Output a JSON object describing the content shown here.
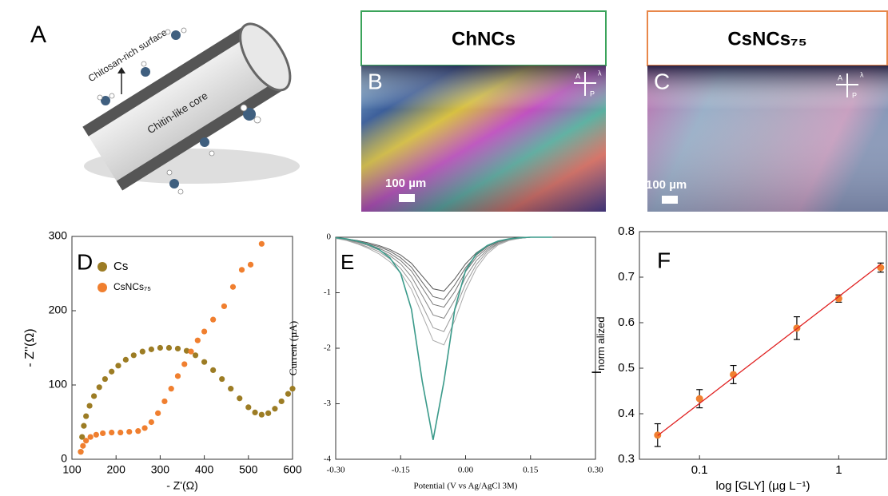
{
  "panels": {
    "A": {
      "letter": "A",
      "labels": [
        "Chitosan-rich surface",
        "Chitin-like core"
      ]
    },
    "B": {
      "letter": "B",
      "title": "ChNCs",
      "scale": "100 µm",
      "icon_labels": [
        "A",
        "P",
        "λ"
      ]
    },
    "C": {
      "letter": "C",
      "title": "CsNCs₇₅",
      "scale": "100 µm",
      "icon_labels": [
        "A",
        "P",
        "λ"
      ]
    }
  },
  "chart_data": [
    {
      "type": "scatter",
      "panel_label": "D",
      "xlabel": "- Z'(Ω)",
      "ylabel": "- Z''(Ω)",
      "xlim": [
        100,
        600
      ],
      "xticks": [
        100,
        200,
        300,
        400,
        500,
        600
      ],
      "ylim": [
        0,
        300
      ],
      "yticks": [
        0,
        100,
        200,
        300
      ],
      "legend": "upper left",
      "series": [
        {
          "name": "Cs",
          "color": "#9c7c24",
          "x": [
            120,
            123,
            127,
            132,
            140,
            150,
            162,
            175,
            190,
            205,
            222,
            240,
            260,
            280,
            300,
            320,
            340,
            360,
            380,
            400,
            420,
            440,
            460,
            480,
            500,
            515,
            530,
            545,
            560,
            575,
            590,
            600
          ],
          "values": [
            10,
            30,
            45,
            58,
            72,
            85,
            97,
            108,
            118,
            126,
            134,
            140,
            145,
            148,
            150,
            150,
            149,
            146,
            140,
            131,
            120,
            108,
            95,
            82,
            70,
            63,
            60,
            62,
            68,
            78,
            88,
            95
          ]
        },
        {
          "name": "CsNCs₇₅",
          "color": "#f07f2f",
          "x": [
            120,
            125,
            132,
            142,
            155,
            170,
            190,
            210,
            230,
            250,
            265,
            280,
            295,
            310,
            325,
            340,
            355,
            370,
            385,
            400,
            420,
            445,
            465,
            485,
            505,
            530
          ],
          "values": [
            10,
            18,
            25,
            30,
            33,
            35,
            36,
            36,
            37,
            38,
            42,
            50,
            62,
            78,
            95,
            112,
            128,
            145,
            160,
            172,
            188,
            206,
            232,
            255,
            262,
            290
          ]
        }
      ]
    },
    {
      "type": "line",
      "panel_label": "E",
      "xlabel": "Potential  (V vs Ag/AgCl 3M)",
      "ylabel": "Current  (µA)",
      "xlim": [
        -0.3,
        0.3
      ],
      "xticks": [
        {
          "value": -0.3,
          "label": "-0.30"
        },
        {
          "value": -0.15,
          "label": "-0.15"
        },
        {
          "value": 0,
          "label": "0.00"
        },
        {
          "value": 0.15,
          "label": "0.15"
        },
        {
          "value": 0.3,
          "label": "0.30"
        }
      ],
      "ylim": [
        -4,
        0
      ],
      "yticks": [
        0,
        -1,
        -2,
        -3,
        -4
      ],
      "x": [
        -0.3,
        -0.275,
        -0.25,
        -0.225,
        -0.2,
        -0.175,
        -0.15,
        -0.125,
        -0.1,
        -0.075,
        -0.05,
        -0.025,
        0,
        0.025,
        0.05,
        0.075,
        0.1,
        0.125,
        0.15,
        0.175,
        0.2
      ],
      "series": [
        {
          "color": "#555555",
          "values": [
            -0.01,
            -0.03,
            -0.06,
            -0.1,
            -0.15,
            -0.22,
            -0.32,
            -0.47,
            -0.7,
            -0.93,
            -0.97,
            -0.75,
            -0.48,
            -0.28,
            -0.15,
            -0.07,
            -0.03,
            -0.01,
            0,
            0,
            0
          ]
        },
        {
          "color": "#666666",
          "values": [
            -0.01,
            -0.03,
            -0.07,
            -0.12,
            -0.17,
            -0.25,
            -0.37,
            -0.54,
            -0.81,
            -1.07,
            -1.12,
            -0.86,
            -0.55,
            -0.32,
            -0.17,
            -0.08,
            -0.03,
            -0.01,
            0,
            0,
            0
          ]
        },
        {
          "color": "#777777",
          "values": [
            -0.01,
            -0.04,
            -0.08,
            -0.13,
            -0.2,
            -0.29,
            -0.42,
            -0.61,
            -0.91,
            -1.21,
            -1.26,
            -0.98,
            -0.62,
            -0.36,
            -0.2,
            -0.09,
            -0.04,
            -0.01,
            0,
            0,
            0
          ]
        },
        {
          "color": "#888888",
          "values": [
            -0.02,
            -0.05,
            -0.09,
            -0.15,
            -0.23,
            -0.33,
            -0.48,
            -0.71,
            -1.05,
            -1.4,
            -1.46,
            -1.13,
            -0.72,
            -0.42,
            -0.23,
            -0.11,
            -0.05,
            -0.02,
            0,
            0,
            0
          ]
        },
        {
          "color": "#999999",
          "values": [
            -0.02,
            -0.05,
            -0.11,
            -0.18,
            -0.26,
            -0.39,
            -0.56,
            -0.82,
            -1.23,
            -1.63,
            -1.7,
            -1.31,
            -0.84,
            -0.49,
            -0.26,
            -0.12,
            -0.05,
            -0.02,
            0,
            0,
            0
          ]
        },
        {
          "color": "#aaaaaa",
          "values": [
            -0.02,
            -0.06,
            -0.12,
            -0.2,
            -0.3,
            -0.44,
            -0.64,
            -0.94,
            -1.4,
            -1.86,
            -1.94,
            -1.5,
            -0.96,
            -0.56,
            -0.3,
            -0.14,
            -0.06,
            -0.02,
            0,
            0,
            0
          ]
        },
        {
          "color": "#3a9a8a",
          "values": [
            -0.01,
            -0.03,
            -0.07,
            -0.13,
            -0.22,
            -0.37,
            -0.65,
            -1.3,
            -2.6,
            -3.65,
            -2.6,
            -1.3,
            -0.6,
            -0.3,
            -0.15,
            -0.07,
            -0.03,
            -0.01,
            0,
            0,
            0
          ]
        }
      ]
    },
    {
      "type": "scatter",
      "panel_label": "F",
      "xlabel": "log [GLY] (µg L⁻¹)",
      "ylabel": "I",
      "ylabel_subscript": "norm alized",
      "xscale": "log",
      "xlim": [
        0.037,
        2.2
      ],
      "xticks": [
        0.1,
        1
      ],
      "ylim": [
        0.3,
        0.8
      ],
      "yticks": [
        0.3,
        0.4,
        0.5,
        0.6,
        0.7,
        0.8
      ],
      "series": [
        {
          "color": "#f08030",
          "x": [
            0.05,
            0.1,
            0.175,
            0.5,
            1,
            2
          ],
          "values": [
            0.353,
            0.433,
            0.486,
            0.588,
            0.653,
            0.721
          ],
          "errors": [
            0.025,
            0.02,
            0.02,
            0.025,
            0.008,
            0.01
          ]
        }
      ],
      "fit": {
        "color": "#e02020",
        "x": [
          0.05,
          2
        ],
        "values": [
          0.352,
          0.728
        ]
      }
    }
  ]
}
